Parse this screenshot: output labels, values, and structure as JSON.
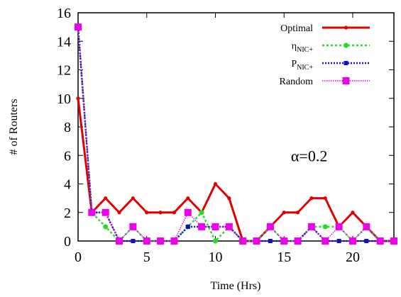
{
  "chart_data": {
    "type": "line",
    "xlabel": "Time (Hrs)",
    "ylabel": "# of Routers",
    "xlim": [
      0,
      23
    ],
    "ylim": [
      0,
      16
    ],
    "xticks": [
      0,
      5,
      10,
      15,
      20
    ],
    "yticks": [
      0,
      2,
      4,
      6,
      8,
      10,
      12,
      14,
      16
    ],
    "x": [
      0,
      1,
      2,
      3,
      4,
      5,
      6,
      7,
      8,
      9,
      10,
      11,
      12,
      13,
      14,
      15,
      16,
      17,
      18,
      19,
      20,
      21,
      22,
      23
    ],
    "grid": false,
    "legend_position": "top-right",
    "annotation": {
      "text": "α=0.2",
      "x": 15.5,
      "y": 6
    },
    "series": [
      {
        "name": "Optimal",
        "name_main": "Optimal",
        "name_sub": "",
        "color": "#e00000",
        "marker": "dot",
        "dash": "",
        "width": 3,
        "values": [
          10,
          2,
          3,
          2,
          3,
          2,
          2,
          2,
          3,
          2,
          4,
          3,
          0,
          0,
          1,
          2,
          2,
          3,
          3,
          1,
          2,
          1,
          0,
          0
        ]
      },
      {
        "name": "ηNIC+",
        "name_main": "η",
        "name_sub": "NIC+",
        "color": "#22dd22",
        "marker": "circle",
        "dash": "3,3",
        "width": 2.5,
        "values": [
          15,
          2,
          1,
          0,
          1,
          0,
          0,
          0,
          1,
          2,
          0,
          1,
          0,
          0,
          1,
          0,
          0,
          1,
          1,
          1,
          0,
          1,
          0,
          0
        ]
      },
      {
        "name": "PNIC+",
        "name_main": "P",
        "name_sub": "NIC+",
        "color": "#1010c0",
        "marker": "smallsquare",
        "dash": "2,2",
        "width": 2.5,
        "values": [
          15,
          2,
          2,
          0,
          0,
          0,
          0,
          0,
          1,
          1,
          1,
          1,
          0,
          0,
          0,
          0,
          0,
          1,
          0,
          0,
          0,
          0,
          0,
          0
        ]
      },
      {
        "name": "Random",
        "name_main": "Random",
        "name_sub": "",
        "color": "#ee00ee",
        "marker": "square",
        "dash": "1.5,1.5",
        "width": 1.5,
        "values": [
          15,
          2,
          2,
          0,
          1,
          0,
          0,
          0,
          2,
          1,
          1,
          1,
          0,
          0,
          1,
          0,
          0,
          1,
          0,
          1,
          0,
          1,
          0,
          0
        ]
      }
    ]
  }
}
